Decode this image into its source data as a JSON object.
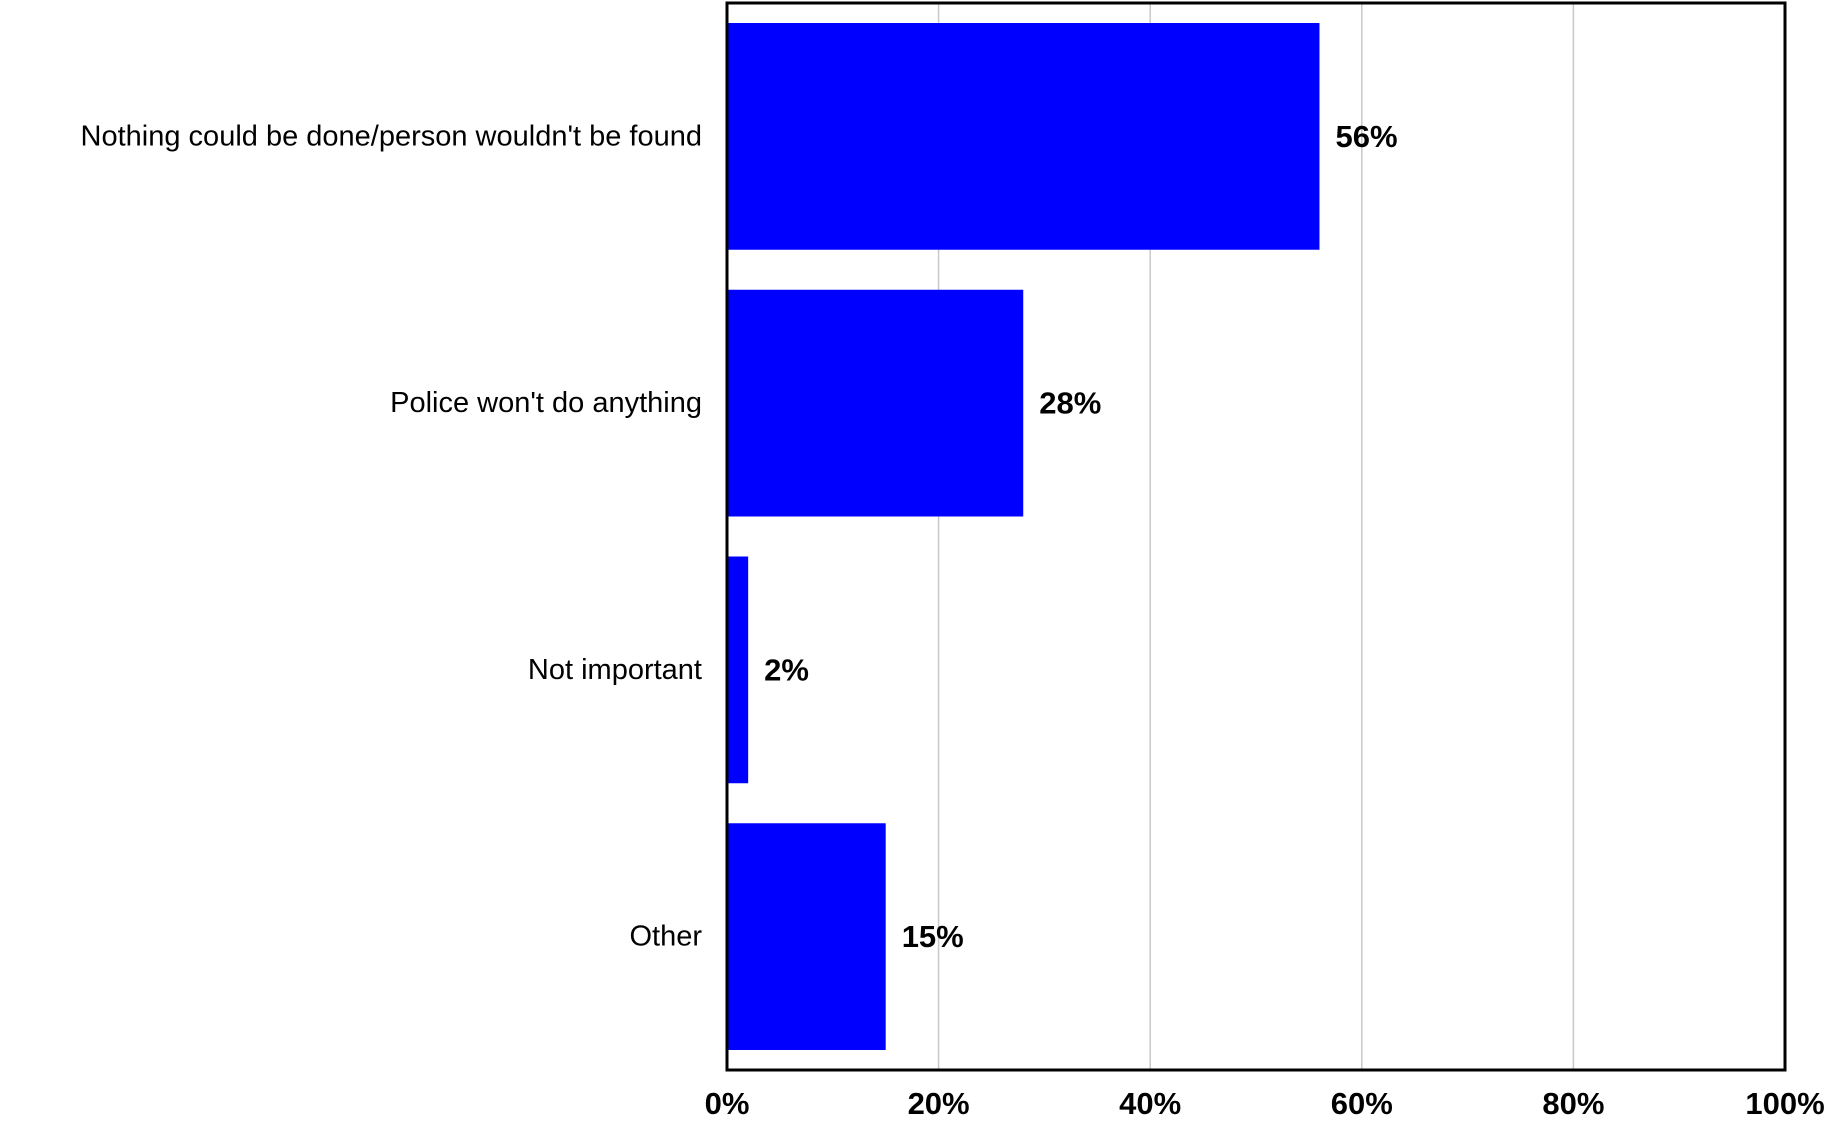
{
  "chart_data": {
    "type": "bar",
    "orientation": "horizontal",
    "categories": [
      "Nothing could be done/person wouldn't be found",
      "Police won't do anything",
      "Not important",
      "Other"
    ],
    "values": [
      56,
      28,
      2,
      15
    ],
    "value_labels": [
      "56%",
      "28%",
      "2%",
      "15%"
    ],
    "xlim": [
      0,
      100
    ],
    "x_ticks": [
      0,
      20,
      40,
      60,
      80,
      100
    ],
    "x_tick_labels": [
      "0%",
      "20%",
      "40%",
      "60%",
      "80%",
      "100%"
    ],
    "title": "",
    "xlabel": "",
    "ylabel": "",
    "grid": "vertical",
    "legend": "none",
    "colors": {
      "bar": "#0000ff",
      "grid": "#c8c8c8",
      "frame": "#000000"
    }
  }
}
